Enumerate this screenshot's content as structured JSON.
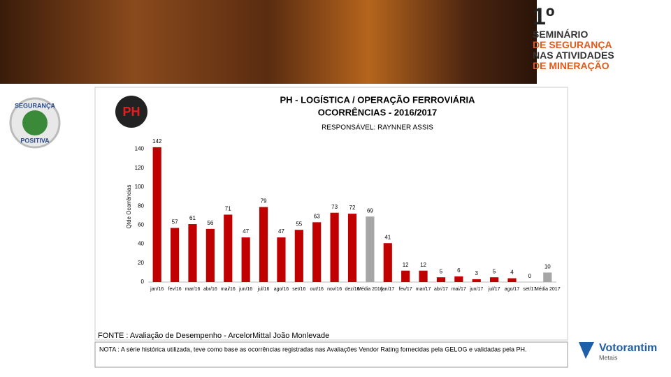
{
  "header": {
    "badge": "1º",
    "lines": [
      "SEMINÁRIO",
      "DE SEGURANÇA",
      "NAS ATIVIDADES",
      "DE MINERAÇÃO"
    ]
  },
  "logos": {
    "left_top": "SEGURANÇA",
    "left_bottom": "POSITIVA",
    "ph": "PH",
    "brand": "Votorantim",
    "brand_sub": "Metais"
  },
  "chart_data": {
    "type": "bar",
    "title": "PH - LOGÍSTICA / OPERAÇÃO FERROVIÁRIA",
    "subtitle": "OCORRÊNCIAS - 2016/2017",
    "responsible": "RESPONSÁVEL: RAYNNER ASSIS",
    "y_label": "Qtde Ocorrências",
    "categories": [
      "jan/16",
      "fev/16",
      "mar/16",
      "abr/16",
      "mai/16",
      "jun/16",
      "jul/16",
      "ago/16",
      "set/16",
      "out/16",
      "nov/16",
      "dez/16",
      "Média 2016",
      "jan/17",
      "fev/17",
      "mar/17",
      "abr/17",
      "mai/17",
      "jun/17",
      "jul/17",
      "ago/17",
      "set/17",
      "Média 2017"
    ],
    "values": [
      142,
      57,
      61,
      56,
      71,
      47,
      79,
      47,
      55,
      63,
      73,
      72,
      69,
      41,
      12,
      12,
      5,
      6,
      3,
      5,
      4,
      0,
      10
    ],
    "colors": [
      "#c00000",
      "#c00000",
      "#c00000",
      "#c00000",
      "#c00000",
      "#c00000",
      "#c00000",
      "#c00000",
      "#c00000",
      "#c00000",
      "#c00000",
      "#c00000",
      "#a6a6a6",
      "#c00000",
      "#c00000",
      "#c00000",
      "#c00000",
      "#c00000",
      "#c00000",
      "#c00000",
      "#c00000",
      "#c00000",
      "#a6a6a6"
    ],
    "ylim": [
      0,
      150
    ],
    "yticks": [
      0,
      20,
      40,
      60,
      80,
      100,
      120,
      140
    ],
    "grid": false,
    "source": "FONTE : Avaliação de Desempenho - ArcelorMittal João Monlevade",
    "note": "NOTA : A série histórica utilizada, teve como base as ocorrências registradas nas Avaliações Vendor Rating fornecidas pela GELOG e validadas pela PH."
  }
}
